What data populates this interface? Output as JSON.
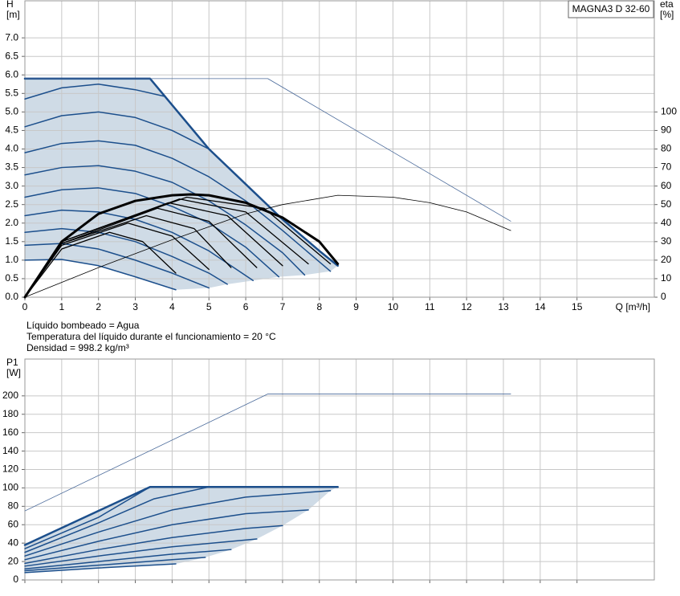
{
  "chart_data": [
    {
      "type": "line",
      "ylabel": "H",
      "yunit": "[m]",
      "y2label": "eta",
      "y2unit": "[%]",
      "xlabel": "Q [m³/h]",
      "annotation": "MAGNA3 D 32-60",
      "grid": true,
      "fill": "#cfdbe6",
      "xlim": [
        0,
        17.1
      ],
      "xticks": [
        0,
        1,
        2,
        3,
        4,
        5,
        6,
        7,
        8,
        9,
        10,
        11,
        12,
        13,
        14,
        15
      ],
      "ylim": [
        0,
        8
      ],
      "yticks": [
        {
          "value": 0,
          "label": "0.0"
        },
        0.5,
        {
          "value": 1,
          "label": "1.0"
        },
        1.5,
        {
          "value": 2,
          "label": "2.0"
        },
        2.5,
        {
          "value": 3,
          "label": "3.0"
        },
        3.5,
        {
          "value": 4,
          "label": "4.0"
        },
        4.5,
        {
          "value": 5,
          "label": "5.0"
        },
        5.5,
        {
          "value": 6,
          "label": "6.0"
        },
        6.5,
        {
          "value": 7,
          "label": "7.0"
        }
      ],
      "y2lim": [
        0,
        160
      ],
      "y2ticks": [
        0,
        10,
        20,
        30,
        40,
        50,
        60,
        70,
        80,
        90,
        100
      ],
      "series": [
        {
          "color": "#1c4f8c",
          "width": 2.5,
          "x": [
            0,
            3.4,
            5,
            6,
            7,
            8,
            8.5
          ],
          "values": [
            5.9,
            5.9,
            4.0,
            3.05,
            2.1,
            1.25,
            0.85
          ]
        },
        {
          "color": "#1c4f8c",
          "width": 1.5,
          "x": [
            0,
            1,
            2,
            3,
            3.8
          ],
          "values": [
            5.35,
            5.65,
            5.75,
            5.6,
            5.42
          ]
        },
        {
          "color": "#1c4f8c",
          "width": 1.5,
          "x": [
            0,
            1,
            2,
            3,
            4,
            5
          ],
          "values": [
            4.6,
            4.9,
            5.0,
            4.85,
            4.5,
            4.0
          ]
        },
        {
          "color": "#1c4f8c",
          "width": 1.5,
          "x": [
            0,
            1,
            2,
            3,
            4,
            5,
            6,
            7,
            8.3
          ],
          "values": [
            3.9,
            4.15,
            4.22,
            4.1,
            3.75,
            3.25,
            2.6,
            1.8,
            0.7
          ]
        },
        {
          "color": "#1c4f8c",
          "width": 1.5,
          "x": [
            0,
            1,
            2,
            3,
            4,
            5,
            6,
            7,
            7.6
          ],
          "values": [
            3.3,
            3.5,
            3.55,
            3.4,
            3.1,
            2.6,
            1.95,
            1.2,
            0.6
          ]
        },
        {
          "color": "#1c4f8c",
          "width": 1.5,
          "x": [
            0,
            1,
            2,
            3,
            4,
            5,
            6,
            6.9
          ],
          "values": [
            2.7,
            2.9,
            2.95,
            2.8,
            2.45,
            2.0,
            1.35,
            0.55
          ]
        },
        {
          "color": "#1c4f8c",
          "width": 1.5,
          "x": [
            0,
            1,
            2,
            3,
            4,
            5,
            6.2
          ],
          "values": [
            2.2,
            2.35,
            2.3,
            2.1,
            1.75,
            1.25,
            0.45
          ]
        },
        {
          "color": "#1c4f8c",
          "width": 1.5,
          "x": [
            0,
            1,
            2,
            3,
            4,
            5,
            5.5
          ],
          "values": [
            1.75,
            1.85,
            1.75,
            1.5,
            1.1,
            0.65,
            0.35
          ]
        },
        {
          "color": "#1c4f8c",
          "width": 1.5,
          "x": [
            0,
            1,
            2,
            3,
            4,
            5
          ],
          "values": [
            1.4,
            1.45,
            1.3,
            1.0,
            0.65,
            0.25
          ]
        },
        {
          "color": "#1c4f8c",
          "width": 1.5,
          "x": [
            0,
            1,
            2,
            3,
            4.1
          ],
          "values": [
            1.0,
            1.02,
            0.85,
            0.55,
            0.2
          ]
        },
        {
          "color": "#4a6a9a",
          "width": 0.8,
          "x": [
            0,
            6.6,
            13.2
          ],
          "values": [
            5.9,
            5.9,
            2.05
          ]
        },
        {
          "color": "#000000",
          "width": 0.8,
          "axis": "y2",
          "x": [
            0,
            2,
            4,
            6,
            7,
            8.5,
            10,
            11,
            12,
            13.2
          ],
          "values": [
            0,
            16,
            31,
            45,
            50,
            55,
            54,
            51,
            46,
            36
          ]
        },
        {
          "color": "#000000",
          "width": 1.3,
          "axis": "y2",
          "x": [
            0,
            1,
            2.3,
            3.2,
            4.1
          ],
          "values": [
            0,
            26,
            35,
            30,
            13
          ]
        },
        {
          "color": "#000000",
          "width": 1.3,
          "axis": "y2",
          "x": [
            0,
            1,
            2.8,
            4,
            5
          ],
          "values": [
            0,
            28,
            40,
            33,
            15
          ]
        },
        {
          "color": "#000000",
          "width": 1.3,
          "axis": "y2",
          "x": [
            0,
            1,
            3.3,
            4.6,
            5.6
          ],
          "values": [
            0,
            29,
            44,
            37,
            16
          ]
        },
        {
          "color": "#000000",
          "width": 1.3,
          "axis": "y2",
          "x": [
            0,
            1,
            3.6,
            5,
            6.3
          ],
          "values": [
            0,
            29,
            48,
            41,
            16
          ]
        },
        {
          "color": "#000000",
          "width": 1.3,
          "axis": "y2",
          "x": [
            0,
            1,
            3.9,
            5.5,
            7.0
          ],
          "values": [
            0,
            30,
            51,
            44,
            17
          ]
        },
        {
          "color": "#000000",
          "width": 1.3,
          "axis": "y2",
          "x": [
            0,
            1,
            4.2,
            6,
            7.7
          ],
          "values": [
            0,
            30,
            53,
            46,
            18
          ]
        },
        {
          "color": "#000000",
          "width": 1.3,
          "axis": "y2",
          "x": [
            0,
            1,
            4.4,
            6.5,
            8.3
          ],
          "values": [
            0,
            30,
            54,
            48,
            18
          ]
        },
        {
          "color": "#000000",
          "width": 3,
          "axis": "y2",
          "x": [
            0,
            1,
            2,
            3,
            4,
            4.5,
            5,
            6,
            7,
            8,
            8.5
          ],
          "values": [
            0,
            30,
            45,
            52,
            55,
            55.5,
            55,
            51,
            43,
            30,
            18
          ]
        }
      ]
    },
    {
      "type": "line",
      "ylabel": "P1",
      "yunit": "[W]",
      "grid": true,
      "fill": "#cfdbe6",
      "xtick_labels": false,
      "xlim": [
        0,
        17.1
      ],
      "xticks": [
        0,
        1,
        2,
        3,
        4,
        5,
        6,
        7,
        8,
        9,
        10,
        11,
        12,
        13,
        14,
        15
      ],
      "ylim": [
        0,
        240
      ],
      "yticks": [
        0,
        20,
        40,
        60,
        80,
        100,
        120,
        140,
        160,
        180,
        200
      ],
      "series": [
        {
          "color": "#1c4f8c",
          "width": 2.5,
          "x": [
            0,
            3.4,
            8.5
          ],
          "values": [
            38,
            101,
            101
          ]
        },
        {
          "color": "#1c4f8c",
          "width": 1.5,
          "x": [
            0,
            2,
            3.4
          ],
          "values": [
            34,
            68,
            101
          ]
        },
        {
          "color": "#1c4f8c",
          "width": 1.5,
          "x": [
            0,
            2,
            3.5,
            5
          ],
          "values": [
            30,
            62,
            88,
            101
          ]
        },
        {
          "color": "#1c4f8c",
          "width": 1.5,
          "x": [
            0,
            2,
            4,
            6,
            8.3
          ],
          "values": [
            26,
            52,
            76,
            90,
            97
          ]
        },
        {
          "color": "#1c4f8c",
          "width": 1.5,
          "x": [
            0,
            2,
            4,
            6,
            7.7
          ],
          "values": [
            22,
            42,
            60,
            72,
            76
          ]
        },
        {
          "color": "#1c4f8c",
          "width": 1.5,
          "x": [
            0,
            2,
            4,
            6,
            7.0
          ],
          "values": [
            18,
            33,
            46,
            56,
            59
          ]
        },
        {
          "color": "#1c4f8c",
          "width": 1.5,
          "x": [
            0,
            2,
            4,
            6.3
          ],
          "values": [
            15,
            26,
            36,
            44.5
          ]
        },
        {
          "color": "#1c4f8c",
          "width": 1.5,
          "x": [
            0,
            2,
            4,
            5.6
          ],
          "values": [
            12,
            20,
            28,
            33
          ]
        },
        {
          "color": "#1c4f8c",
          "width": 1.5,
          "x": [
            0,
            2,
            4,
            4.9
          ],
          "values": [
            10,
            16,
            22,
            24.5
          ]
        },
        {
          "color": "#1c4f8c",
          "width": 1.5,
          "x": [
            0,
            2,
            4.1
          ],
          "values": [
            8,
            13,
            17.5
          ]
        },
        {
          "color": "#4a6a9a",
          "width": 0.8,
          "x": [
            0,
            6.6,
            13.2
          ],
          "values": [
            75,
            202,
            202
          ]
        }
      ]
    }
  ],
  "notes": [
    "Líquido bombeado = Agua",
    "Temperatura del líquido durante el funcionamiento = 20 °C",
    "Densidad = 998.2 kg/m³"
  ]
}
